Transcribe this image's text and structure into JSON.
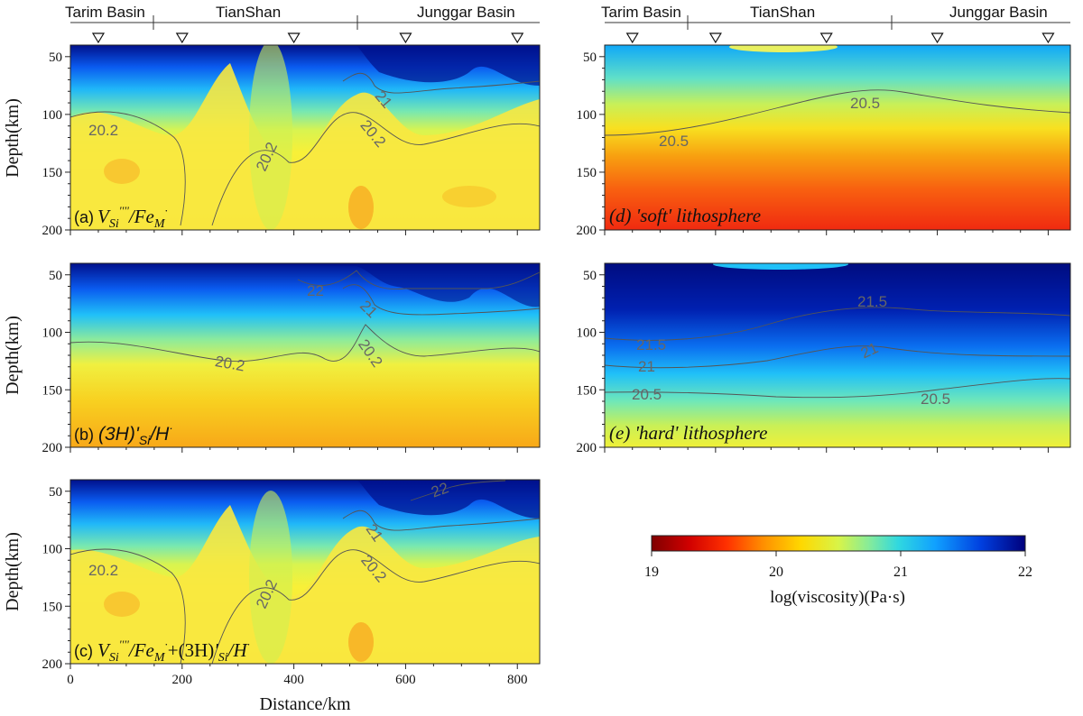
{
  "regions": [
    "Tarim Basin",
    "TianShan",
    "Junggar Basin"
  ],
  "axes": {
    "xlabel": "Distance/km",
    "ylabel": "Depth(km)",
    "xticks": [
      "0",
      "200",
      "400",
      "600",
      "800"
    ],
    "yticks": [
      "50",
      "100",
      "150",
      "200"
    ]
  },
  "colorbar": {
    "title": "log(viscosity)(Pa·s)",
    "ticks": [
      "19",
      "20",
      "21",
      "22"
    ],
    "colors": [
      "#7f0000",
      "#d00000",
      "#ff2a00",
      "#ff8c00",
      "#ffd200",
      "#f8f838",
      "#b8f060",
      "#60e8b8",
      "#20c8f0",
      "#1090ff",
      "#0040e0",
      "#00008c"
    ]
  },
  "chart_data": [
    {
      "type": "heatmap",
      "id": "a",
      "label": "(a)",
      "label_formula": "V''''Si/Fe·M",
      "xlim": [
        0,
        840
      ],
      "ylim": [
        200,
        40
      ],
      "contours": [
        {
          "value": 20.2,
          "text": "20.2"
        },
        {
          "value": 21,
          "text": "21"
        }
      ],
      "ridges_km": [
        [
          50,
          70
        ],
        [
          200,
          62
        ],
        [
          400,
          70
        ],
        [
          600,
          70
        ],
        [
          800,
          60
        ]
      ]
    },
    {
      "type": "heatmap",
      "id": "b",
      "label": "(b)",
      "label_formula": "(3H)'Si/H·",
      "xlim": [
        0,
        840
      ],
      "ylim": [
        200,
        40
      ],
      "contours": [
        {
          "value": 20.2,
          "text": "20.2"
        },
        {
          "value": 21,
          "text": "21"
        },
        {
          "value": 22,
          "text": "22"
        }
      ]
    },
    {
      "type": "heatmap",
      "id": "c",
      "label": "(c)",
      "label_formula": "V''''Si/Fe·M+(3H)'Si/H·",
      "xlim": [
        0,
        840
      ],
      "ylim": [
        200,
        40
      ],
      "contours": [
        {
          "value": 20.2,
          "text": "20.2"
        },
        {
          "value": 21,
          "text": "21"
        },
        {
          "value": 22,
          "text": "22"
        }
      ]
    },
    {
      "type": "heatmap",
      "id": "d",
      "label": "(d)",
      "title": "'soft' lithosphere",
      "xlim": [
        0,
        840
      ],
      "ylim": [
        200,
        40
      ],
      "contours": [
        {
          "value": 20.5,
          "text": "20.5"
        }
      ]
    },
    {
      "type": "heatmap",
      "id": "e",
      "label": "(e)",
      "title": "'hard' lithosphere",
      "xlim": [
        0,
        840
      ],
      "ylim": [
        200,
        40
      ],
      "contours": [
        {
          "value": 21.5,
          "text": "21.5"
        },
        {
          "value": 21,
          "text": "21"
        },
        {
          "value": 20.5,
          "text": "20.5"
        }
      ]
    }
  ],
  "stations_km": [
    50,
    200,
    400,
    600,
    800
  ],
  "labels": {
    "a_letter": "(a)",
    "b_letter": "(b)",
    "c_letter": "(c)",
    "d_title": "(d)  'soft' lithosphere",
    "e_title": "(e)  'hard' lithosphere",
    "c2_0": "20.2",
    "c2_1": "20.2",
    "c2_2": "20.2",
    "c2_3": "21",
    "b2_0": "22",
    "b2_1": "21",
    "b2_2": "20.2",
    "b2_3": "20.2",
    "cc_0": "22",
    "cc_1": "21",
    "cc_2": "20.2",
    "cc_3": "20.2",
    "cc_4": "20.2",
    "d_0": "20.5",
    "d_1": "20.5",
    "e_0": "21.5",
    "e_1": "21.5",
    "e_2": "21",
    "e_3": "21",
    "e_4": "20.5",
    "e_5": "20.5"
  }
}
